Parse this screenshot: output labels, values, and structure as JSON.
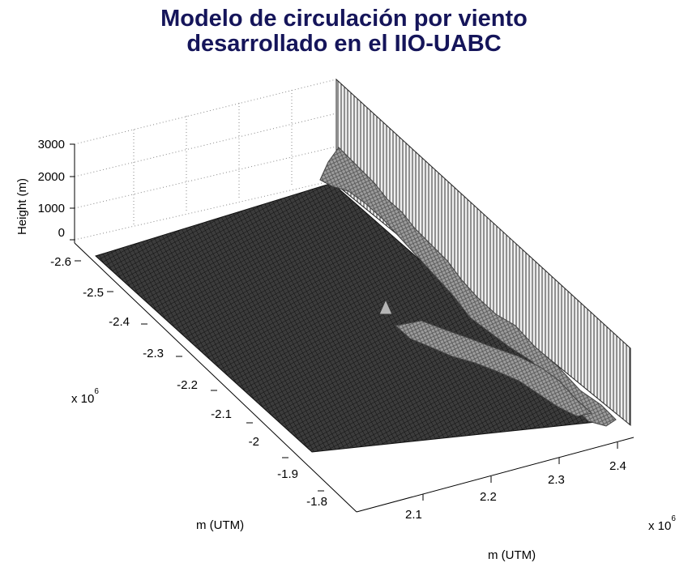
{
  "title": {
    "line1": "Modelo de circulación por viento",
    "line2": "desarrollado en el IIO-UABC"
  },
  "colors": {
    "title": "#15155a",
    "surface_dark": "#3a3a3a",
    "mesh": "#1a1a1a",
    "mountains": "#9a9a9a",
    "grid": "#888888"
  },
  "chart_data": {
    "type": "surface",
    "title": "",
    "zlabel": "Height (m)",
    "xlabel": "m (UTM)",
    "ylabel": "m (UTM)",
    "z_ticks": [
      "0",
      "1000",
      "2000",
      "3000"
    ],
    "left_axis_ticks": [
      "-2.6",
      "-2.5",
      "-2.4",
      "-2.3",
      "-2.2",
      "-2.1",
      "-2",
      "-1.9",
      "-1.8"
    ],
    "right_axis_ticks": [
      "2.1",
      "2.2",
      "2.3",
      "2.4"
    ],
    "left_axis_exponent": "x 10",
    "left_axis_exponent_power": "6",
    "right_axis_exponent": "x 10",
    "right_axis_exponent_power": "6",
    "zlim": [
      0,
      3000
    ],
    "grid": true
  }
}
